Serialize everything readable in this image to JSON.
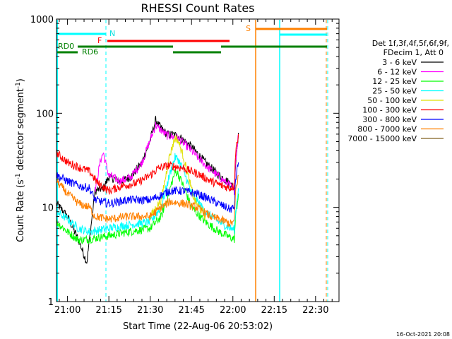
{
  "chart_data": {
    "type": "line",
    "title": "RHESSI Count Rates",
    "xlabel": "Start Time (22-Aug-06 20:53:02)",
    "ylabel_parts": [
      "Count Rate (s",
      "-1",
      " detector segment",
      "-1",
      ")"
    ],
    "y_scale": "log",
    "ylim": [
      1,
      1000
    ],
    "xlim_minutes": [
      -4.0,
      98.5
    ],
    "x_ticks": [
      {
        "minute": 0,
        "label": "21:00"
      },
      {
        "minute": 15,
        "label": "21:15"
      },
      {
        "minute": 30,
        "label": "21:30"
      },
      {
        "minute": 45,
        "label": "21:45"
      },
      {
        "minute": 60,
        "label": "22:00"
      },
      {
        "minute": 75,
        "label": "22:15"
      },
      {
        "minute": 90,
        "label": "22:30"
      }
    ],
    "y_ticks": [
      {
        "value": 1,
        "label": "1"
      },
      {
        "value": 10,
        "label": "10"
      },
      {
        "value": 100,
        "label": "100"
      },
      {
        "value": 1000,
        "label": "1000"
      }
    ],
    "legend_position": "right",
    "legend_header": [
      "Det 1f,3f,4f,5f,6f,9f,",
      "FDecim 1, Att 0"
    ],
    "series": [
      {
        "name": "3 - 6 keV",
        "color": "#000000",
        "points": [
          [
            -4,
            11
          ],
          [
            0,
            8
          ],
          [
            4,
            4.5
          ],
          [
            7,
            2.6
          ],
          [
            10,
            15
          ],
          [
            13,
            16
          ],
          [
            15,
            21
          ],
          [
            19,
            19
          ],
          [
            23,
            21
          ],
          [
            27,
            30
          ],
          [
            30,
            52
          ],
          [
            32,
            85
          ],
          [
            33,
            75
          ],
          [
            36,
            60
          ],
          [
            40,
            58
          ],
          [
            45,
            44
          ],
          [
            50,
            30
          ],
          [
            55,
            22
          ],
          [
            59,
            18
          ],
          [
            60.5,
            16
          ],
          [
            61,
            30
          ],
          [
            62,
            62
          ]
        ]
      },
      {
        "name": "6 - 12 keV",
        "color": "#ff00ff",
        "points": [
          [
            10,
            15
          ],
          [
            12,
            32
          ],
          [
            13,
            38
          ],
          [
            14,
            28
          ],
          [
            15,
            22
          ],
          [
            19,
            19
          ],
          [
            23,
            21
          ],
          [
            27,
            30
          ],
          [
            30,
            52
          ],
          [
            32,
            75
          ],
          [
            33,
            70
          ],
          [
            36,
            58
          ],
          [
            40,
            55
          ],
          [
            45,
            40
          ],
          [
            50,
            28
          ],
          [
            55,
            21
          ],
          [
            59,
            17
          ],
          [
            60.5,
            15
          ],
          [
            61,
            32
          ],
          [
            62,
            60
          ]
        ]
      },
      {
        "name": "12 - 25 keV",
        "color": "#00ff00",
        "points": [
          [
            -4,
            7
          ],
          [
            0,
            5.5
          ],
          [
            4,
            4.5
          ],
          [
            8,
            4.6
          ],
          [
            15,
            5
          ],
          [
            22,
            5.5
          ],
          [
            30,
            6
          ],
          [
            34,
            8
          ],
          [
            37,
            15
          ],
          [
            39,
            24
          ],
          [
            40,
            23
          ],
          [
            42,
            17
          ],
          [
            45,
            10
          ],
          [
            50,
            7
          ],
          [
            55,
            5.5
          ],
          [
            59,
            4.8
          ],
          [
            60.5,
            4.6
          ],
          [
            61,
            8
          ],
          [
            62,
            14
          ]
        ]
      },
      {
        "name": "25 - 50 keV",
        "color": "#00ffff",
        "points": [
          [
            -4,
            9
          ],
          [
            0,
            7.5
          ],
          [
            4,
            6
          ],
          [
            8,
            5.5
          ],
          [
            15,
            6
          ],
          [
            22,
            6.5
          ],
          [
            30,
            7
          ],
          [
            34,
            10
          ],
          [
            37,
            22
          ],
          [
            39,
            34
          ],
          [
            40,
            33
          ],
          [
            42,
            25
          ],
          [
            45,
            14
          ],
          [
            50,
            9
          ],
          [
            55,
            7
          ],
          [
            59,
            6
          ],
          [
            60.5,
            5.8
          ],
          [
            61,
            9
          ],
          [
            62,
            16
          ]
        ]
      },
      {
        "name": "50 - 100 keV",
        "color": "#e0e000",
        "points": [
          [
            30,
            8
          ],
          [
            34,
            12
          ],
          [
            37,
            35
          ],
          [
            39,
            55
          ],
          [
            40,
            52
          ],
          [
            42,
            35
          ],
          [
            44,
            20
          ],
          [
            46,
            12
          ],
          [
            50,
            8
          ]
        ]
      },
      {
        "name": "100 - 300 keV",
        "color": "#ff0000",
        "points": [
          [
            -4,
            38
          ],
          [
            0,
            30
          ],
          [
            5,
            26
          ],
          [
            8,
            24
          ],
          [
            11,
            18
          ],
          [
            15,
            15
          ],
          [
            20,
            17
          ],
          [
            25,
            18
          ],
          [
            30,
            22
          ],
          [
            33,
            26
          ],
          [
            37,
            28
          ],
          [
            42,
            26
          ],
          [
            47,
            23
          ],
          [
            52,
            19
          ],
          [
            56,
            17
          ],
          [
            59,
            16
          ],
          [
            60.5,
            17
          ],
          [
            61,
            40
          ],
          [
            62,
            60
          ]
        ]
      },
      {
        "name": "300 - 800 keV",
        "color": "#0000ff",
        "points": [
          [
            -4,
            22
          ],
          [
            0,
            19
          ],
          [
            4,
            17
          ],
          [
            8,
            16
          ],
          [
            10,
            12
          ],
          [
            15,
            11
          ],
          [
            22,
            12
          ],
          [
            30,
            12
          ],
          [
            34,
            13.5
          ],
          [
            37,
            15
          ],
          [
            42,
            15
          ],
          [
            47,
            14
          ],
          [
            52,
            12
          ],
          [
            56,
            10.5
          ],
          [
            59,
            9.5
          ],
          [
            60.5,
            10
          ],
          [
            61,
            20
          ],
          [
            62,
            30
          ]
        ]
      },
      {
        "name": "800 - 7000 keV",
        "color": "#ff8000",
        "points": [
          [
            -4,
            19
          ],
          [
            0,
            14
          ],
          [
            4,
            11
          ],
          [
            8,
            10
          ],
          [
            10,
            8
          ],
          [
            15,
            7.5
          ],
          [
            22,
            8
          ],
          [
            30,
            8
          ],
          [
            34,
            10
          ],
          [
            37,
            11.5
          ],
          [
            42,
            11
          ],
          [
            47,
            10
          ],
          [
            52,
            8
          ],
          [
            56,
            7.3
          ],
          [
            59,
            6.7
          ],
          [
            60.5,
            7
          ],
          [
            61,
            15
          ],
          [
            62,
            22
          ]
        ]
      },
      {
        "name": "7000 - 15000 keV",
        "color": "#806020",
        "points": []
      }
    ],
    "annotations": [
      {
        "label": "RD0",
        "color": "#008000"
      },
      {
        "label": "RD6",
        "color": "#008000"
      },
      {
        "label": "N",
        "color": "#00e0e0"
      },
      {
        "label": "F",
        "color": "#ff0000"
      },
      {
        "label": "S",
        "color": "#ff8000"
      }
    ],
    "footer": "16-Oct-2021 20:08"
  }
}
